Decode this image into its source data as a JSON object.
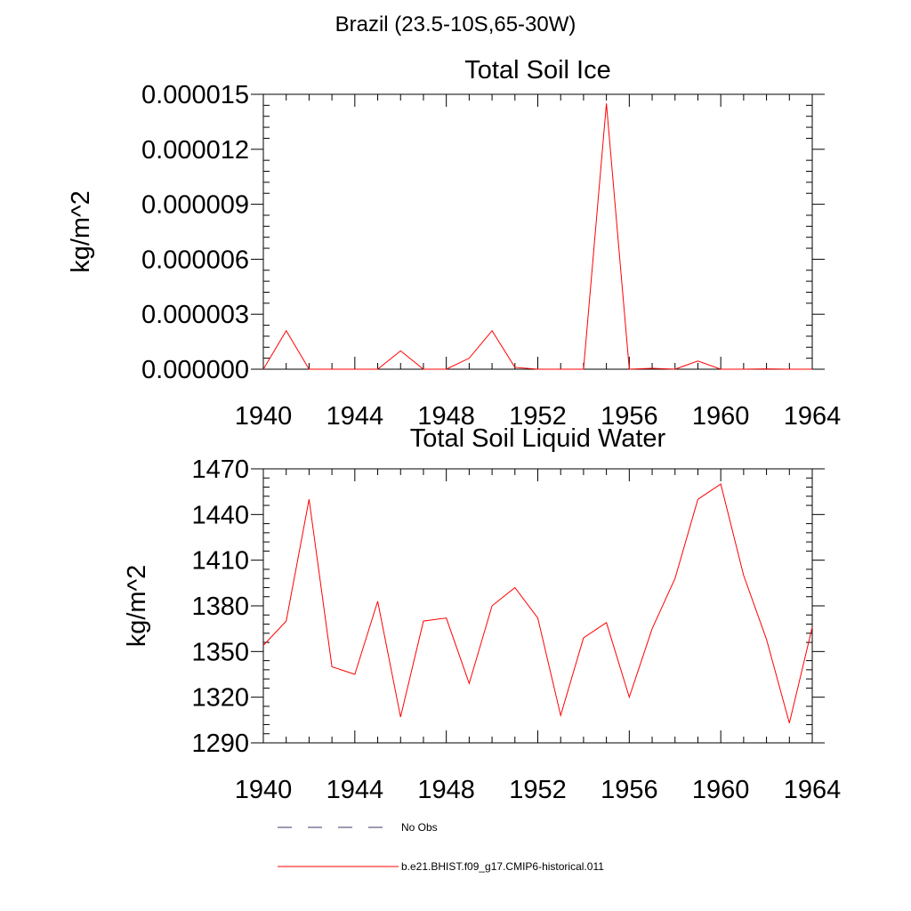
{
  "page_title": "Brazil (23.5-10S,65-30W)",
  "colors": {
    "model": "#ff0000",
    "obs": "#3a3a6a",
    "axis": "#000000"
  },
  "chart_data": [
    {
      "type": "line",
      "title": "Total Soil Ice",
      "xlabel": "",
      "ylabel": "kg/m^2",
      "xlim": [
        1940,
        1964
      ],
      "ylim": [
        0,
        1.5e-05
      ],
      "x_ticks": [
        "1940",
        "1944",
        "1948",
        "1952",
        "1956",
        "1960",
        "1964"
      ],
      "y_ticks": [
        "0.000000",
        "0.000003",
        "0.000006",
        "0.000009",
        "0.000012",
        "0.000015"
      ],
      "x": [
        1940,
        1941,
        1942,
        1943,
        1944,
        1945,
        1946,
        1947,
        1948,
        1949,
        1950,
        1951,
        1952,
        1953,
        1954,
        1955,
        1956,
        1957,
        1958,
        1959,
        1960,
        1961,
        1962,
        1963,
        1964
      ],
      "series": [
        {
          "name": "b.e21.BHIST.f09_g17.CMIP6-historical.011",
          "values": [
            0,
            2.1e-06,
            0,
            0,
            0,
            0,
            1e-06,
            0,
            0,
            6e-07,
            2.1e-06,
            1e-07,
            0,
            0,
            0,
            1.45e-05,
            0,
            5e-08,
            0,
            4.5e-07,
            0,
            0,
            2e-08,
            0,
            0
          ]
        }
      ]
    },
    {
      "type": "line",
      "title": "Total Soil Liquid Water",
      "xlabel": "",
      "ylabel": "kg/m^2",
      "xlim": [
        1940,
        1964
      ],
      "ylim": [
        1290,
        1470
      ],
      "x_ticks": [
        "1940",
        "1944",
        "1948",
        "1952",
        "1956",
        "1960",
        "1964"
      ],
      "y_ticks": [
        "1290",
        "1320",
        "1350",
        "1380",
        "1410",
        "1440",
        "1470"
      ],
      "x": [
        1940,
        1941,
        1942,
        1943,
        1944,
        1945,
        1946,
        1947,
        1948,
        1949,
        1950,
        1951,
        1952,
        1953,
        1954,
        1955,
        1956,
        1957,
        1958,
        1959,
        1960,
        1961,
        1962,
        1963,
        1964
      ],
      "series": [
        {
          "name": "b.e21.BHIST.f09_g17.CMIP6-historical.011",
          "values": [
            1354,
            1370,
            1450,
            1340,
            1335,
            1383,
            1307,
            1370,
            1372,
            1329,
            1380,
            1392,
            1372,
            1308,
            1359,
            1369,
            1320,
            1365,
            1398,
            1450,
            1460,
            1400,
            1358,
            1303,
            1366
          ]
        }
      ]
    }
  ],
  "legend": [
    {
      "label": "No Obs",
      "style": "dashed"
    },
    {
      "label": "b.e21.BHIST.f09_g17.CMIP6-historical.011",
      "style": "solid"
    }
  ]
}
